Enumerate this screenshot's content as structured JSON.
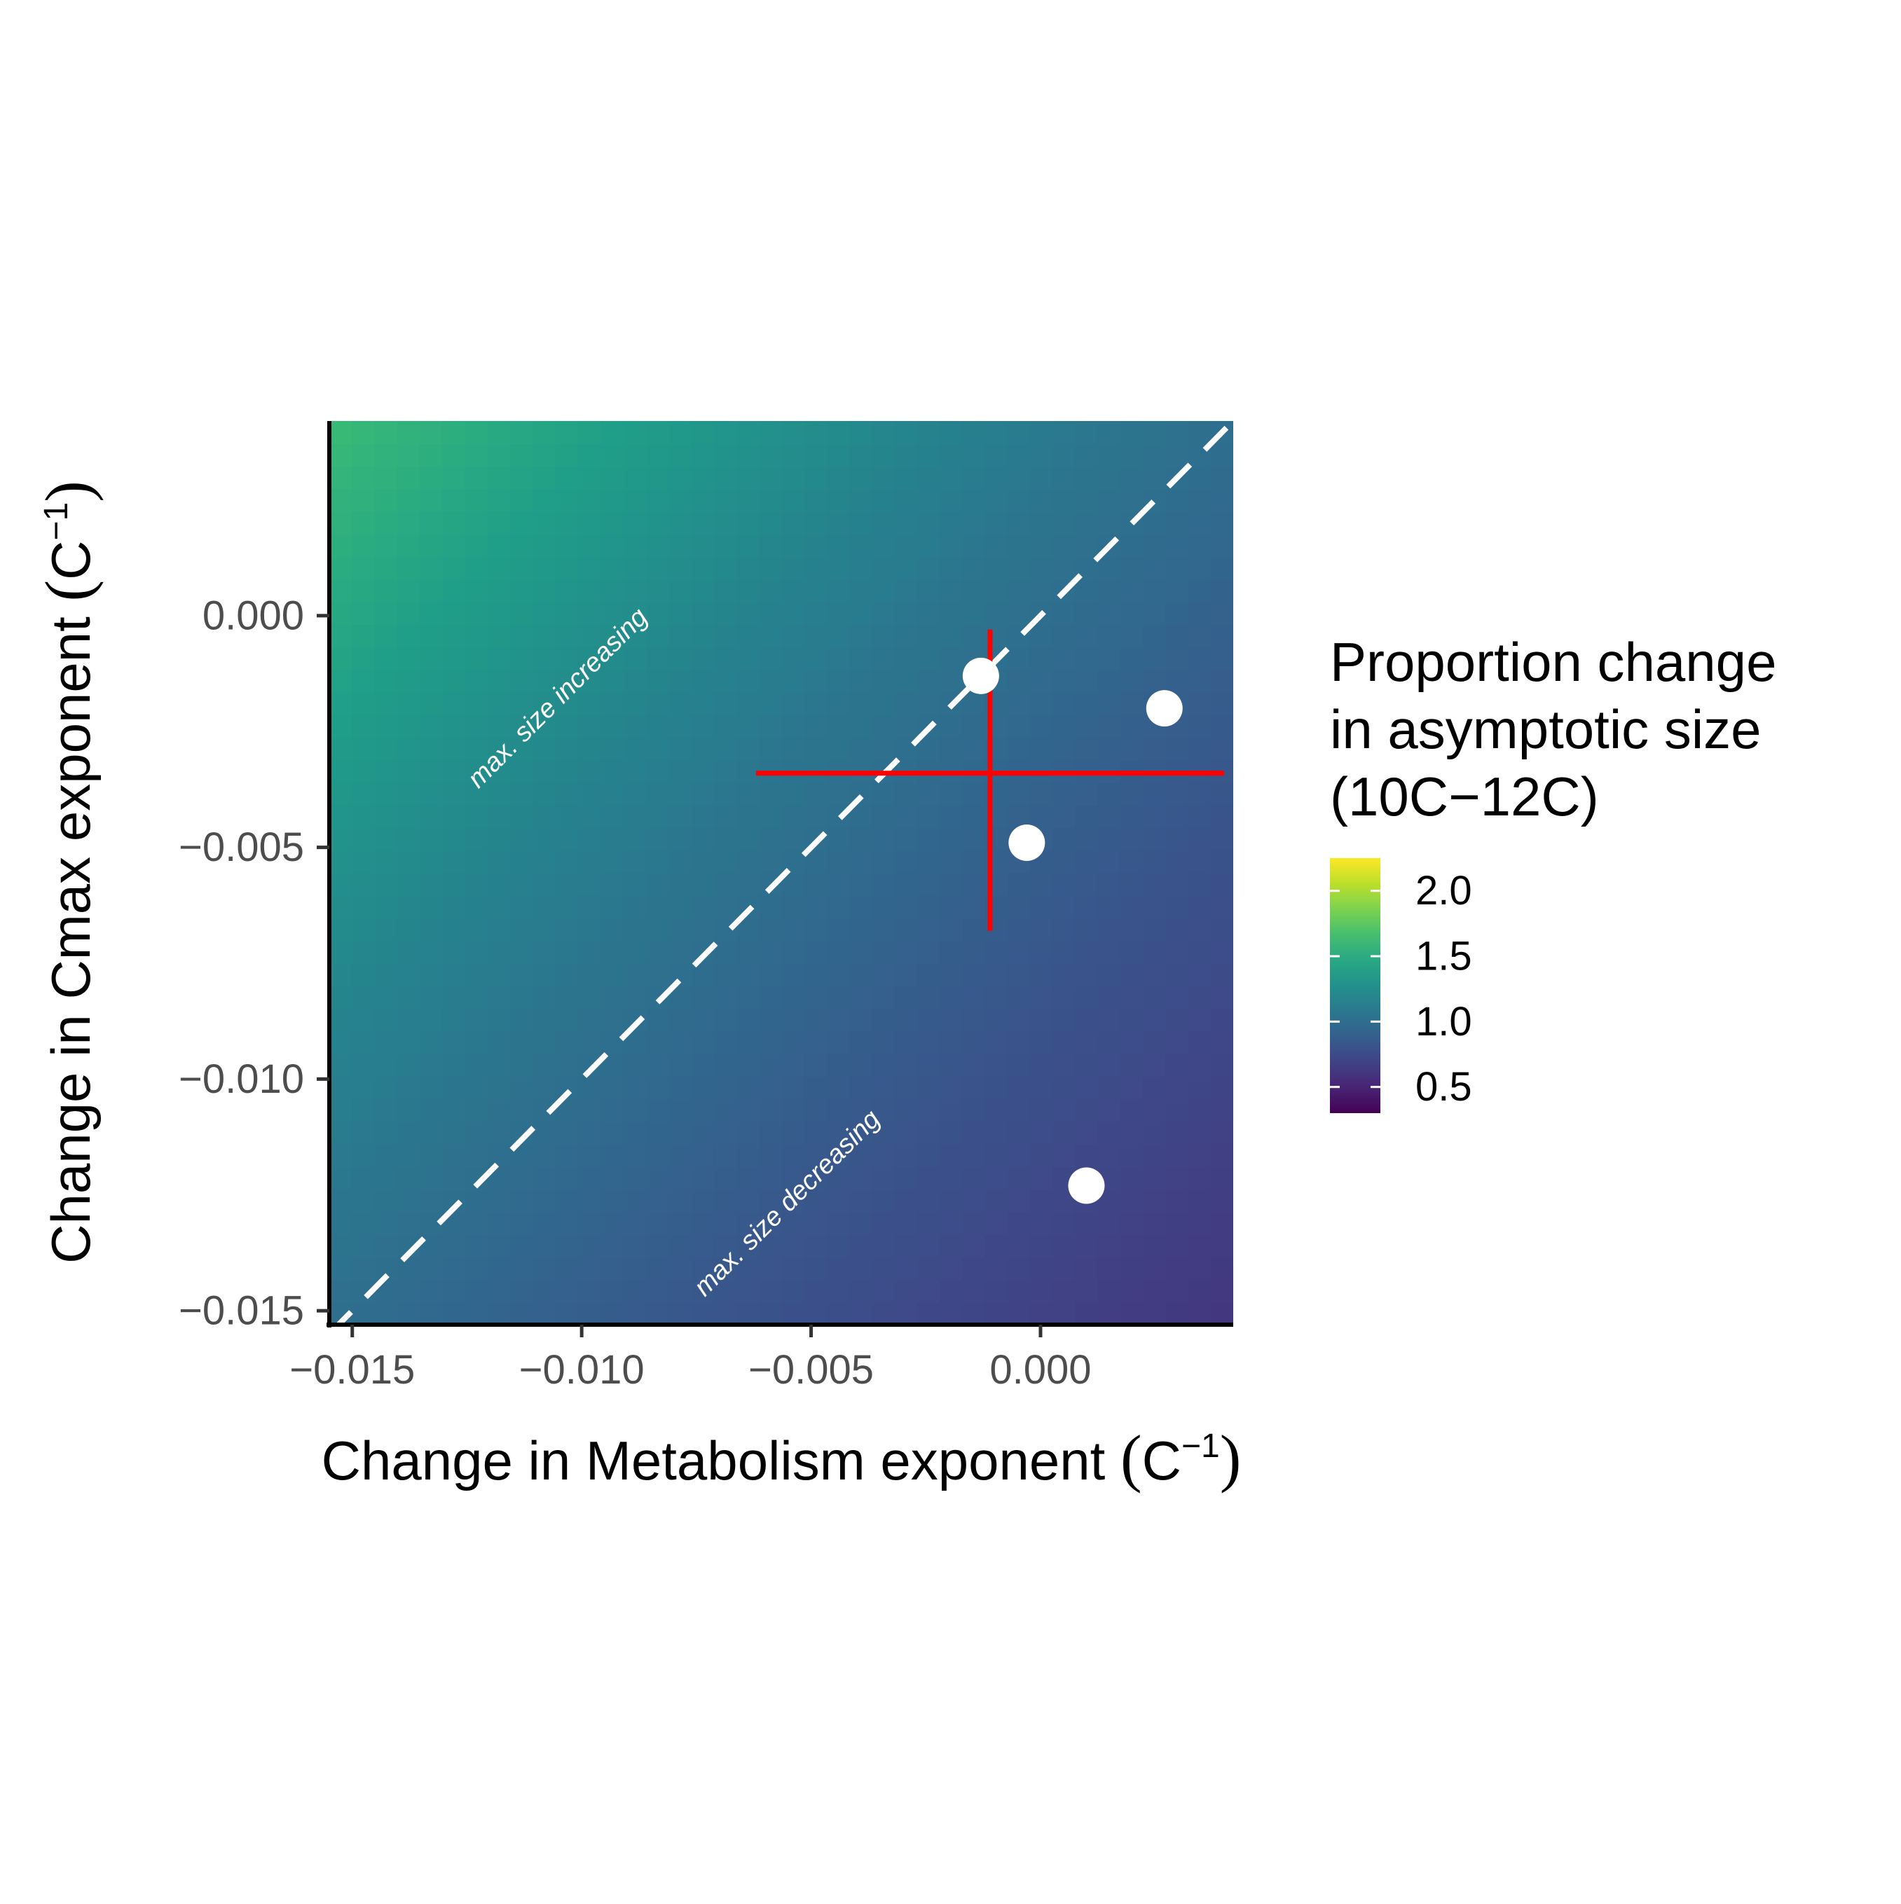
{
  "chart_data": {
    "type": "heatmap",
    "xlabel": "Change in Metabolism exponent",
    "ylabel": "Change in Cmax exponent",
    "unit": {
      "base": "(C",
      "sup": "−1",
      "close": ")"
    },
    "xlim": [
      -0.0155,
      0.0042
    ],
    "ylim": [
      -0.0153,
      0.0042
    ],
    "x_ticks": [
      -0.015,
      -0.01,
      -0.005,
      0.0
    ],
    "x_tick_labels": [
      "−0.015",
      "−0.010",
      "−0.005",
      "0.000"
    ],
    "y_ticks": [
      0.0,
      -0.005,
      -0.01,
      -0.015
    ],
    "y_tick_labels": [
      "0.000",
      "−0.005",
      "−0.010",
      "−0.015"
    ],
    "grid": false,
    "colorscale": "viridis",
    "fill_range": [
      0.3,
      2.25
    ],
    "surface_formula": "exp(25 * (y - x))",
    "legend": {
      "title_lines": [
        "Proportion change",
        "in asymptotic size",
        "(10C−12C)"
      ],
      "placement": "right",
      "ticks": [
        2.0,
        1.5,
        1.0,
        0.5
      ],
      "tick_labels": [
        "2.0",
        "1.5",
        "1.0",
        "0.5"
      ]
    },
    "reference_line": {
      "slope": 1,
      "intercept": 0,
      "style": "dashed",
      "color": "#ffffff"
    },
    "annotations": [
      {
        "text": "max. size increasing",
        "x": -0.0105,
        "y": -0.0018
      },
      {
        "text": "max. size decreasing",
        "x": -0.0055,
        "y": -0.0127
      }
    ],
    "points": [
      {
        "x": -0.0013,
        "y": -0.0013
      },
      {
        "x": 0.0027,
        "y": -0.002
      },
      {
        "x": -0.0003,
        "y": -0.0049
      },
      {
        "x": 0.001,
        "y": -0.0123
      }
    ],
    "crosshair": {
      "x": -0.0011,
      "y": -0.0034,
      "x_range": [
        -0.0062,
        0.004
      ],
      "y_range": [
        -0.0068,
        -0.0003
      ],
      "color": "#ff0000"
    },
    "colors": {
      "axis": "#000000",
      "point": "#ffffff",
      "crosshair": "#ff0000",
      "dash": "#ffffff"
    }
  }
}
